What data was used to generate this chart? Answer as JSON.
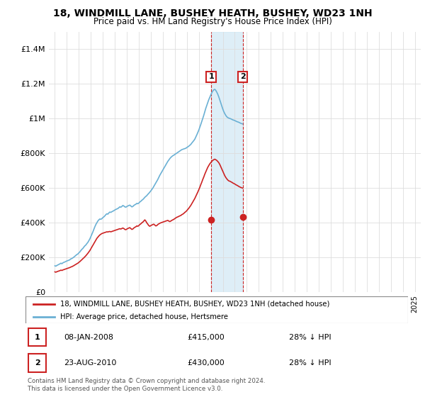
{
  "title": "18, WINDMILL LANE, BUSHEY HEATH, BUSHEY, WD23 1NH",
  "subtitle": "Price paid vs. HM Land Registry's House Price Index (HPI)",
  "legend_line1": "18, WINDMILL LANE, BUSHEY HEATH, BUSHEY, WD23 1NH (detached house)",
  "legend_line2": "HPI: Average price, detached house, Hertsmere",
  "transaction1_date": "08-JAN-2008",
  "transaction1_price": "£415,000",
  "transaction1_hpi": "28% ↓ HPI",
  "transaction2_date": "23-AUG-2010",
  "transaction2_price": "£430,000",
  "transaction2_hpi": "28% ↓ HPI",
  "footer": "Contains HM Land Registry data © Crown copyright and database right 2024.\nThis data is licensed under the Open Government Licence v3.0.",
  "hpi_color": "#6ab0d4",
  "price_color": "#cc2222",
  "shade_color": "#d0e8f5",
  "transaction1_x": 2008.03,
  "transaction2_x": 2010.65,
  "ylim_max": 1500000,
  "ylim_min": 0,
  "xlim_min": 1994.5,
  "xlim_max": 2025.5,
  "hpi_values": [
    150000,
    148000,
    152000,
    155000,
    158000,
    161000,
    165000,
    162000,
    167000,
    170000,
    172000,
    175000,
    178000,
    180000,
    182000,
    185000,
    190000,
    192000,
    196000,
    200000,
    205000,
    210000,
    215000,
    218000,
    225000,
    230000,
    238000,
    245000,
    250000,
    258000,
    265000,
    270000,
    278000,
    285000,
    295000,
    305000,
    318000,
    330000,
    345000,
    360000,
    375000,
    388000,
    398000,
    408000,
    415000,
    420000,
    418000,
    422000,
    428000,
    432000,
    438000,
    445000,
    450000,
    448000,
    455000,
    460000,
    458000,
    462000,
    465000,
    468000,
    472000,
    475000,
    478000,
    480000,
    485000,
    490000,
    488000,
    492000,
    498000,
    495000,
    490000,
    488000,
    492000,
    495000,
    498000,
    500000,
    495000,
    490000,
    492000,
    498000,
    502000,
    505000,
    510000,
    508000,
    512000,
    518000,
    522000,
    528000,
    532000,
    538000,
    545000,
    550000,
    555000,
    562000,
    568000,
    575000,
    582000,
    590000,
    598000,
    608000,
    618000,
    628000,
    638000,
    648000,
    660000,
    672000,
    682000,
    692000,
    702000,
    712000,
    722000,
    732000,
    742000,
    752000,
    760000,
    768000,
    775000,
    780000,
    785000,
    788000,
    792000,
    796000,
    800000,
    804000,
    808000,
    812000,
    816000,
    820000,
    822000,
    824000,
    826000,
    828000,
    832000,
    836000,
    840000,
    845000,
    850000,
    858000,
    865000,
    872000,
    880000,
    892000,
    905000,
    918000,
    932000,
    948000,
    965000,
    982000,
    1000000,
    1018000,
    1038000,
    1058000,
    1075000,
    1092000,
    1108000,
    1122000,
    1135000,
    1148000,
    1158000,
    1165000,
    1168000,
    1162000,
    1152000,
    1140000,
    1125000,
    1108000,
    1090000,
    1072000,
    1055000,
    1040000,
    1028000,
    1018000,
    1010000,
    1005000,
    1002000,
    1000000,
    998000,
    995000,
    992000,
    990000,
    988000,
    985000,
    982000,
    980000,
    978000,
    975000,
    972000,
    970000,
    968000
  ],
  "price_values": [
    115000,
    113000,
    116000,
    118000,
    120000,
    122000,
    125000,
    123000,
    126000,
    128000,
    130000,
    132000,
    134000,
    136000,
    138000,
    140000,
    143000,
    145000,
    148000,
    151000,
    155000,
    158000,
    162000,
    165000,
    170000,
    174000,
    180000,
    185000,
    191000,
    196000,
    202000,
    208000,
    215000,
    222000,
    230000,
    238000,
    248000,
    258000,
    268000,
    278000,
    288000,
    298000,
    308000,
    315000,
    322000,
    328000,
    332000,
    336000,
    338000,
    340000,
    342000,
    344000,
    346000,
    345000,
    347000,
    348000,
    346000,
    348000,
    350000,
    352000,
    354000,
    356000,
    358000,
    360000,
    362000,
    364000,
    362000,
    365000,
    368000,
    365000,
    360000,
    358000,
    362000,
    365000,
    368000,
    370000,
    365000,
    360000,
    362000,
    368000,
    372000,
    375000,
    380000,
    378000,
    382000,
    388000,
    392000,
    398000,
    402000,
    408000,
    415000,
    408000,
    398000,
    390000,
    382000,
    378000,
    382000,
    385000,
    388000,
    390000,
    385000,
    380000,
    382000,
    388000,
    392000,
    395000,
    398000,
    400000,
    402000,
    404000,
    406000,
    408000,
    410000,
    412000,
    408000,
    405000,
    408000,
    412000,
    415000,
    418000,
    422000,
    426000,
    430000,
    432000,
    435000,
    438000,
    440000,
    445000,
    448000,
    452000,
    458000,
    462000,
    468000,
    475000,
    482000,
    490000,
    498000,
    508000,
    518000,
    528000,
    538000,
    550000,
    562000,
    575000,
    588000,
    602000,
    618000,
    632000,
    648000,
    662000,
    678000,
    692000,
    705000,
    718000,
    728000,
    738000,
    745000,
    752000,
    758000,
    762000,
    765000,
    762000,
    758000,
    752000,
    745000,
    735000,
    722000,
    708000,
    695000,
    682000,
    670000,
    660000,
    652000,
    645000,
    640000,
    638000,
    635000,
    632000,
    628000,
    625000,
    622000,
    618000,
    615000,
    612000,
    608000,
    605000,
    602000,
    600000,
    598000
  ],
  "years_start": 1995.0,
  "years_step": 0.0833
}
